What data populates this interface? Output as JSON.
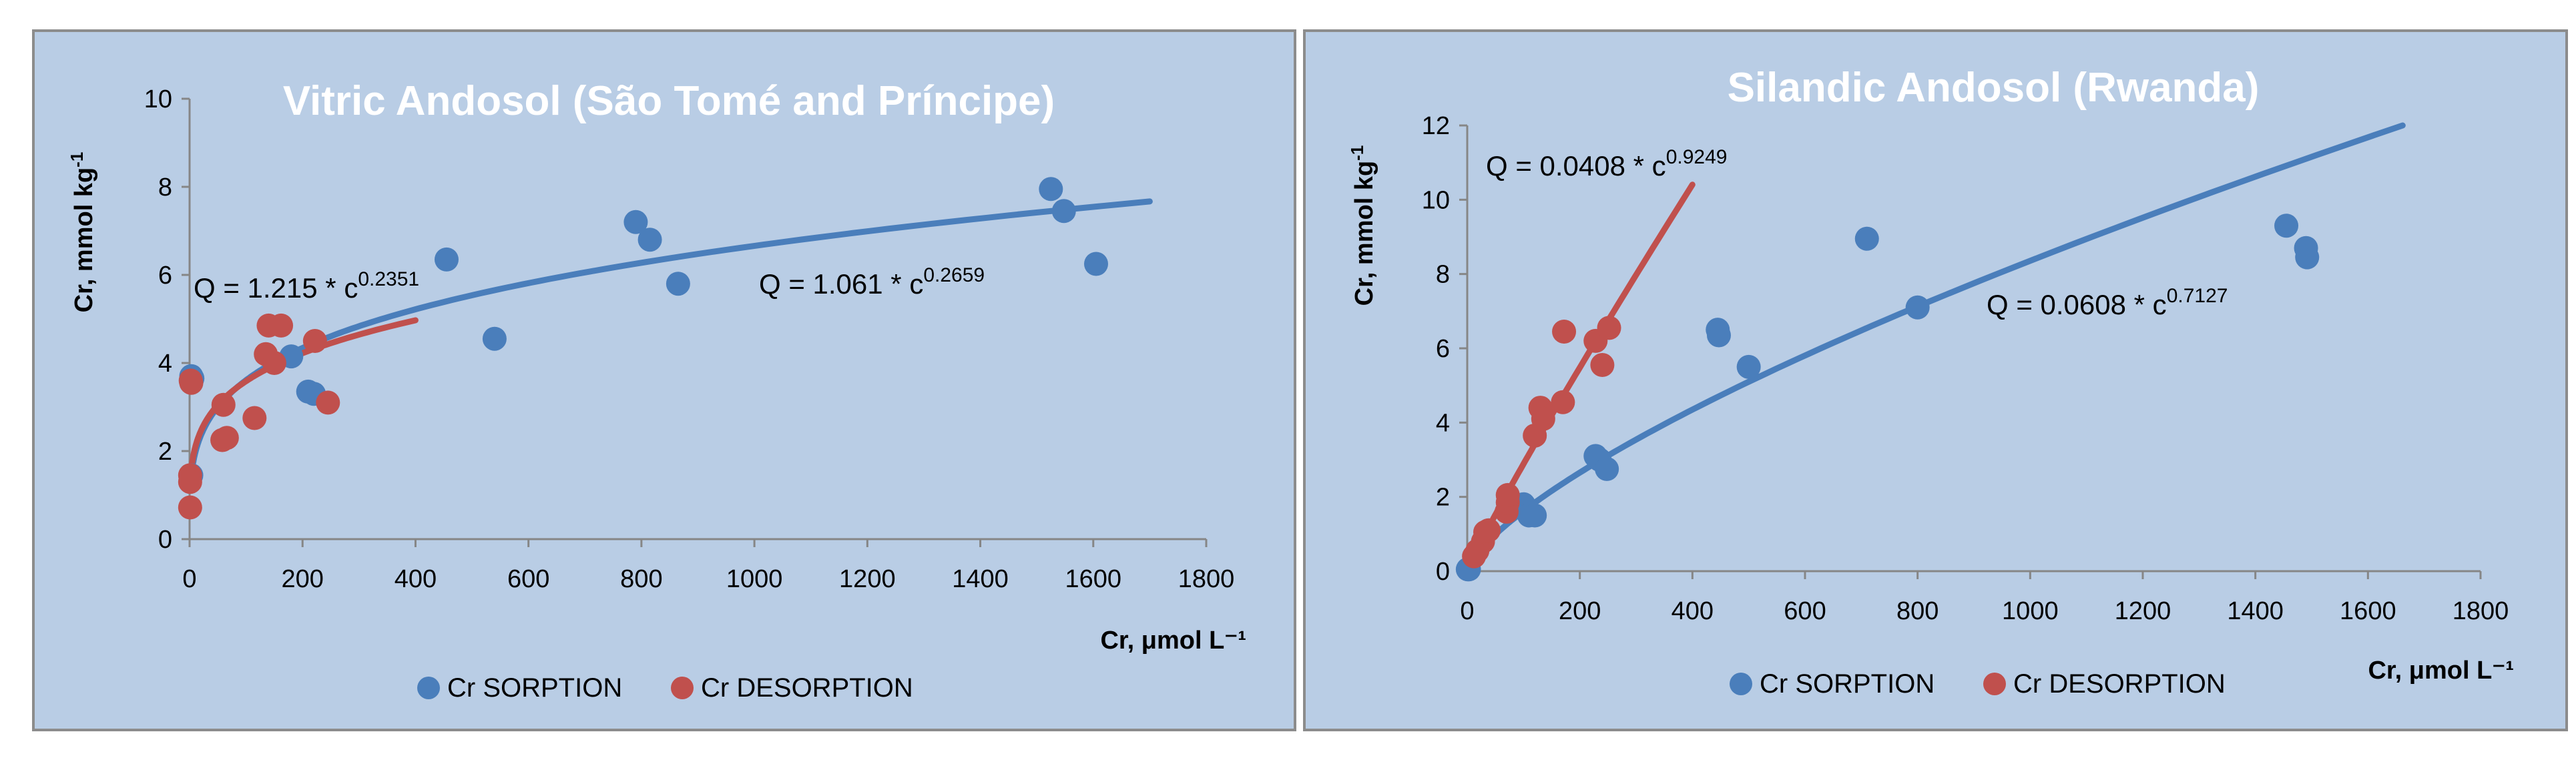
{
  "chart_data": [
    {
      "type": "scatter",
      "title": "Vitric Andosol (São Tomé and Príncipe)",
      "xlabel": "Cr, μmol L⁻¹",
      "ylabel_main": "Cr, mmol kg",
      "ylabel_sup": "-1",
      "xlim": [
        0,
        1800
      ],
      "ylim": [
        0,
        10
      ],
      "xticks": [
        "0",
        "200",
        "400",
        "600",
        "800",
        "1000",
        "1200",
        "1400",
        "1600",
        "1800"
      ],
      "yticks": [
        "0",
        "2",
        "4",
        "6",
        "8",
        "10"
      ],
      "legend": [
        "Cr SORPTION",
        "Cr DESORPTION"
      ],
      "colors": {
        "sorption": "#4a7ebb",
        "desorption": "#c0504d"
      },
      "series": [
        {
          "name": "Cr SORPTION",
          "points": [
            [
              3,
              3.7
            ],
            [
              5,
              3.65
            ],
            [
              3,
              1.45
            ],
            [
              180,
              4.15
            ],
            [
              210,
              3.35
            ],
            [
              220,
              3.3
            ],
            [
              455,
              6.35
            ],
            [
              540,
              4.55
            ],
            [
              790,
              7.2
            ],
            [
              815,
              6.8
            ],
            [
              865,
              5.8
            ],
            [
              1525,
              7.95
            ],
            [
              1548,
              7.45
            ],
            [
              1605,
              6.25
            ]
          ],
          "fit": {
            "a": 1.061,
            "b": 0.2659,
            "xmin": 5,
            "xmax": 1700
          },
          "equation_main": "Q = 1.061 * c",
          "equation_exp": "0.2659"
        },
        {
          "name": "Cr DESORPTION",
          "points": [
            [
              2,
              3.6
            ],
            [
              3,
              3.55
            ],
            [
              1,
              1.45
            ],
            [
              1,
              1.3
            ],
            [
              1,
              0.72
            ],
            [
              60,
              3.05
            ],
            [
              58,
              2.25
            ],
            [
              66,
              2.3
            ],
            [
              115,
              2.75
            ],
            [
              135,
              4.2
            ],
            [
              140,
              4.85
            ],
            [
              150,
              4.0
            ],
            [
              162,
              4.85
            ],
            [
              222,
              4.5
            ],
            [
              245,
              3.1
            ]
          ],
          "fit": {
            "a": 1.215,
            "b": 0.2351,
            "xmin": 2,
            "xmax": 400
          },
          "equation_main": "Q = 1.215 * c",
          "equation_exp": "0.2351"
        }
      ]
    },
    {
      "type": "scatter",
      "title": "Silandic Andosol (Rwanda)",
      "xlabel": "Cr, μmol L⁻¹",
      "ylabel_main": "Cr, mmol kg",
      "ylabel_sup": "-1",
      "xlim": [
        0,
        1800
      ],
      "ylim": [
        0,
        12
      ],
      "xticks": [
        "0",
        "200",
        "400",
        "600",
        "800",
        "1000",
        "1200",
        "1400",
        "1600",
        "1800"
      ],
      "yticks": [
        "0",
        "2",
        "4",
        "6",
        "8",
        "10",
        "12"
      ],
      "legend": [
        "Cr SORPTION",
        "Cr DESORPTION"
      ],
      "colors": {
        "sorption": "#4a7ebb",
        "desorption": "#c0504d"
      },
      "series": [
        {
          "name": "Cr SORPTION",
          "points": [
            [
              1,
              0.05
            ],
            [
              3,
              0.05
            ],
            [
              100,
              1.8
            ],
            [
              110,
              1.5
            ],
            [
              120,
              1.5
            ],
            [
              228,
              3.1
            ],
            [
              235,
              3.0
            ],
            [
              248,
              2.75
            ],
            [
              445,
              6.5
            ],
            [
              447,
              6.35
            ],
            [
              500,
              5.5
            ],
            [
              710,
              8.95
            ],
            [
              800,
              7.1
            ],
            [
              1455,
              9.3
            ],
            [
              1490,
              8.7
            ],
            [
              1492,
              8.45
            ]
          ],
          "fit": {
            "a": 0.0608,
            "b": 0.7127,
            "xmin": 1,
            "xmax": 1670
          },
          "equation_main": "Q = 0.0608 * c",
          "equation_exp": "0.7127"
        },
        {
          "name": "Cr DESORPTION",
          "points": [
            [
              12,
              0.4
            ],
            [
              18,
              0.55
            ],
            [
              28,
              0.8
            ],
            [
              32,
              1.05
            ],
            [
              38,
              1.1
            ],
            [
              70,
              1.6
            ],
            [
              72,
              1.85
            ],
            [
              72,
              2.05
            ],
            [
              120,
              3.65
            ],
            [
              130,
              4.4
            ],
            [
              135,
              4.1
            ],
            [
              170,
              4.55
            ],
            [
              172,
              6.45
            ],
            [
              228,
              6.2
            ],
            [
              240,
              5.55
            ],
            [
              252,
              6.55
            ]
          ],
          "fit": {
            "a": 0.0408,
            "b": 0.9249,
            "xmin": 1,
            "xmax": 400
          },
          "equation_main": "Q = 0.0408 * c",
          "equation_exp": "0.9249"
        }
      ]
    }
  ]
}
